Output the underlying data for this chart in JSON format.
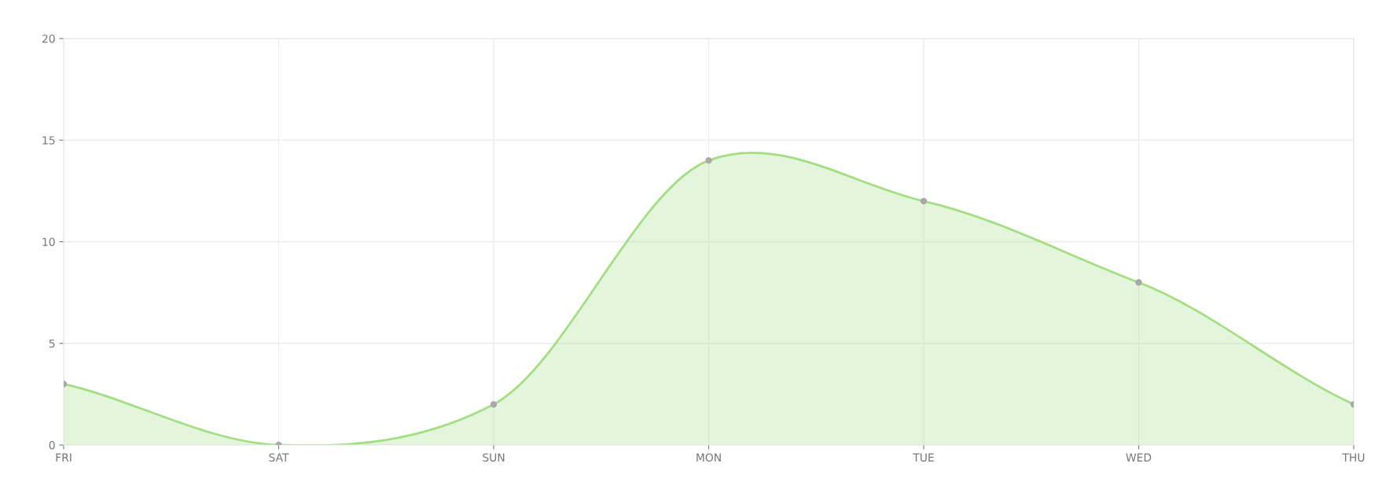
{
  "chart_data": {
    "type": "area",
    "categories": [
      "FRI",
      "SAT",
      "SUN",
      "MON",
      "TUE",
      "WED",
      "THU"
    ],
    "series": [
      {
        "color": "#a3de83",
        "values": [
          3,
          0,
          2,
          14,
          12,
          8,
          2
        ]
      }
    ],
    "ylim": [
      0,
      20
    ],
    "yticks": [
      0,
      5,
      10,
      15,
      20
    ],
    "grid": true,
    "marker": "circle",
    "line_style": "solid"
  }
}
